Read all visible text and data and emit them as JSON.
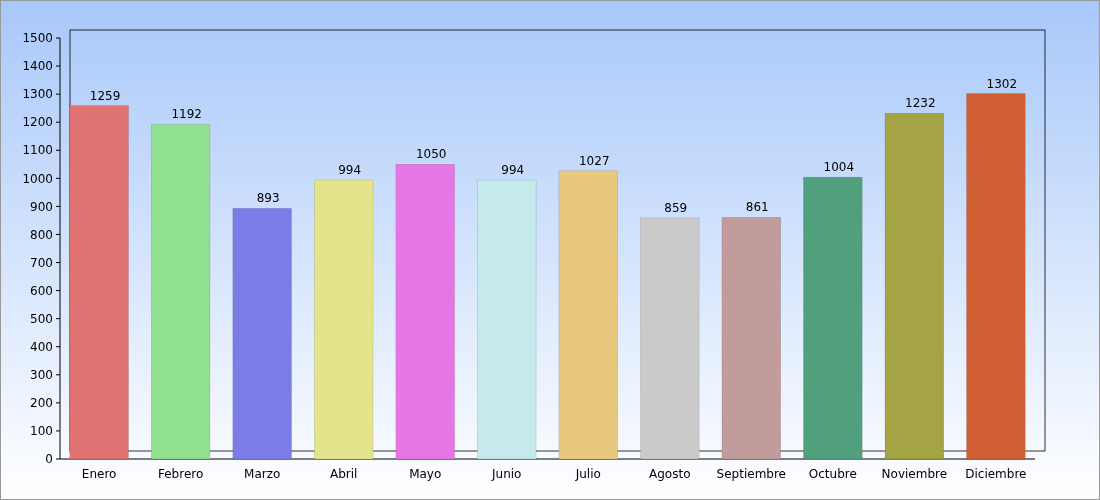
{
  "chart_data": {
    "type": "bar",
    "categories": [
      "Enero",
      "Febrero",
      "Marzo",
      "Abril",
      "Mayo",
      "Junio",
      "Julio",
      "Agosto",
      "Septiembre",
      "Octubre",
      "Noviembre",
      "Diciembre"
    ],
    "values": [
      1259,
      1192,
      893,
      994,
      1050,
      994,
      1027,
      859,
      861,
      1004,
      1232,
      1302
    ],
    "colors": [
      "#e07272",
      "#90e090",
      "#7c7ce6",
      "#e4e48c",
      "#e676e6",
      "#c4eaec",
      "#e8c87c",
      "#cacaca",
      "#c29c9c",
      "#50a07e",
      "#a4a444",
      "#d06034"
    ],
    "ylim": [
      0,
      1500
    ],
    "yticks": [
      0,
      100,
      200,
      300,
      400,
      500,
      600,
      700,
      800,
      900,
      1000,
      1100,
      1200,
      1300,
      1400,
      1500
    ],
    "data_labels": true,
    "grid": false
  }
}
